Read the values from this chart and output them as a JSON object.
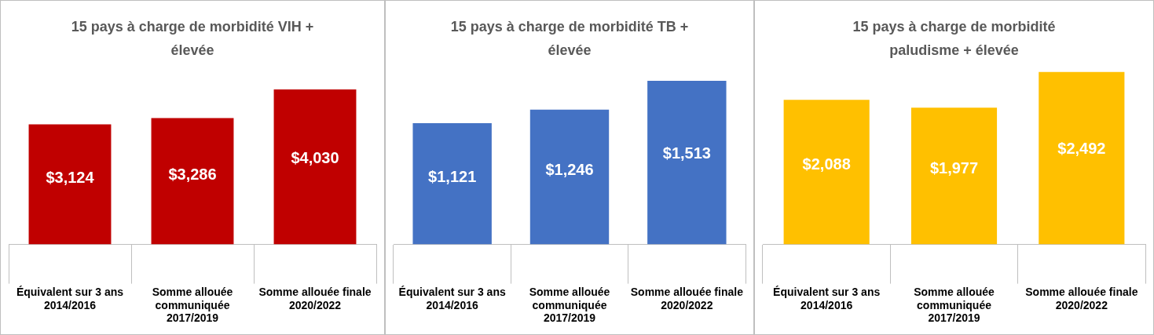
{
  "chart_data": [
    {
      "type": "bar",
      "title": "15 pays à charge de morbidité VIH + élevée",
      "categories": [
        "Équivalent sur 3 ans 2014/2016",
        "Somme allouée communiquée 2017/2019",
        "Somme allouée finale 2020/2022"
      ],
      "values": [
        3124,
        3286,
        4030
      ],
      "value_labels": [
        "$3,124",
        "$3,286",
        "$4,030"
      ],
      "color": "#c00000",
      "grid": false,
      "legend": false,
      "tick_labels": "x"
    },
    {
      "type": "bar",
      "title": "15 pays à charge de morbidité TB + élevée",
      "categories": [
        "Équivalent sur 3 ans 2014/2016",
        "Somme allouée communiquée 2017/2019",
        "Somme allouée finale 2020/2022"
      ],
      "values": [
        1121,
        1246,
        1513
      ],
      "value_labels": [
        "$1,121",
        "$1,246",
        "$1,513"
      ],
      "color": "#4472c4",
      "grid": false,
      "legend": false,
      "tick_labels": "x"
    },
    {
      "type": "bar",
      "title": "15 pays à charge de morbidité paludisme + élevée",
      "categories": [
        "Équivalent sur 3 ans 2014/2016",
        "Somme allouée communiquée 2017/2019",
        "Somme allouée finale 2020/2022"
      ],
      "values": [
        2088,
        1977,
        2492
      ],
      "value_labels": [
        "$2,088",
        "$1,977",
        "$2,492"
      ],
      "color": "#ffc000",
      "grid": false,
      "legend": false,
      "tick_labels": "x"
    }
  ]
}
